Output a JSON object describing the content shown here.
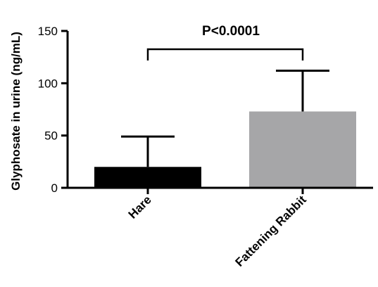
{
  "chart_data": {
    "type": "bar",
    "categories": [
      "Hare",
      "Fattening Rabbit"
    ],
    "values": [
      20,
      73
    ],
    "error_upper": [
      49,
      112
    ],
    "colors": [
      "#000000",
      "#a6a6a8"
    ],
    "ylabel": "Glyphosate in urine (ng/mL)",
    "xlabel": "",
    "ylim": [
      0,
      150
    ],
    "yticks": [
      0,
      50,
      100,
      150
    ],
    "grid": false,
    "annotation": {
      "text": "P<0.0001",
      "from": 0,
      "to": 1
    }
  }
}
